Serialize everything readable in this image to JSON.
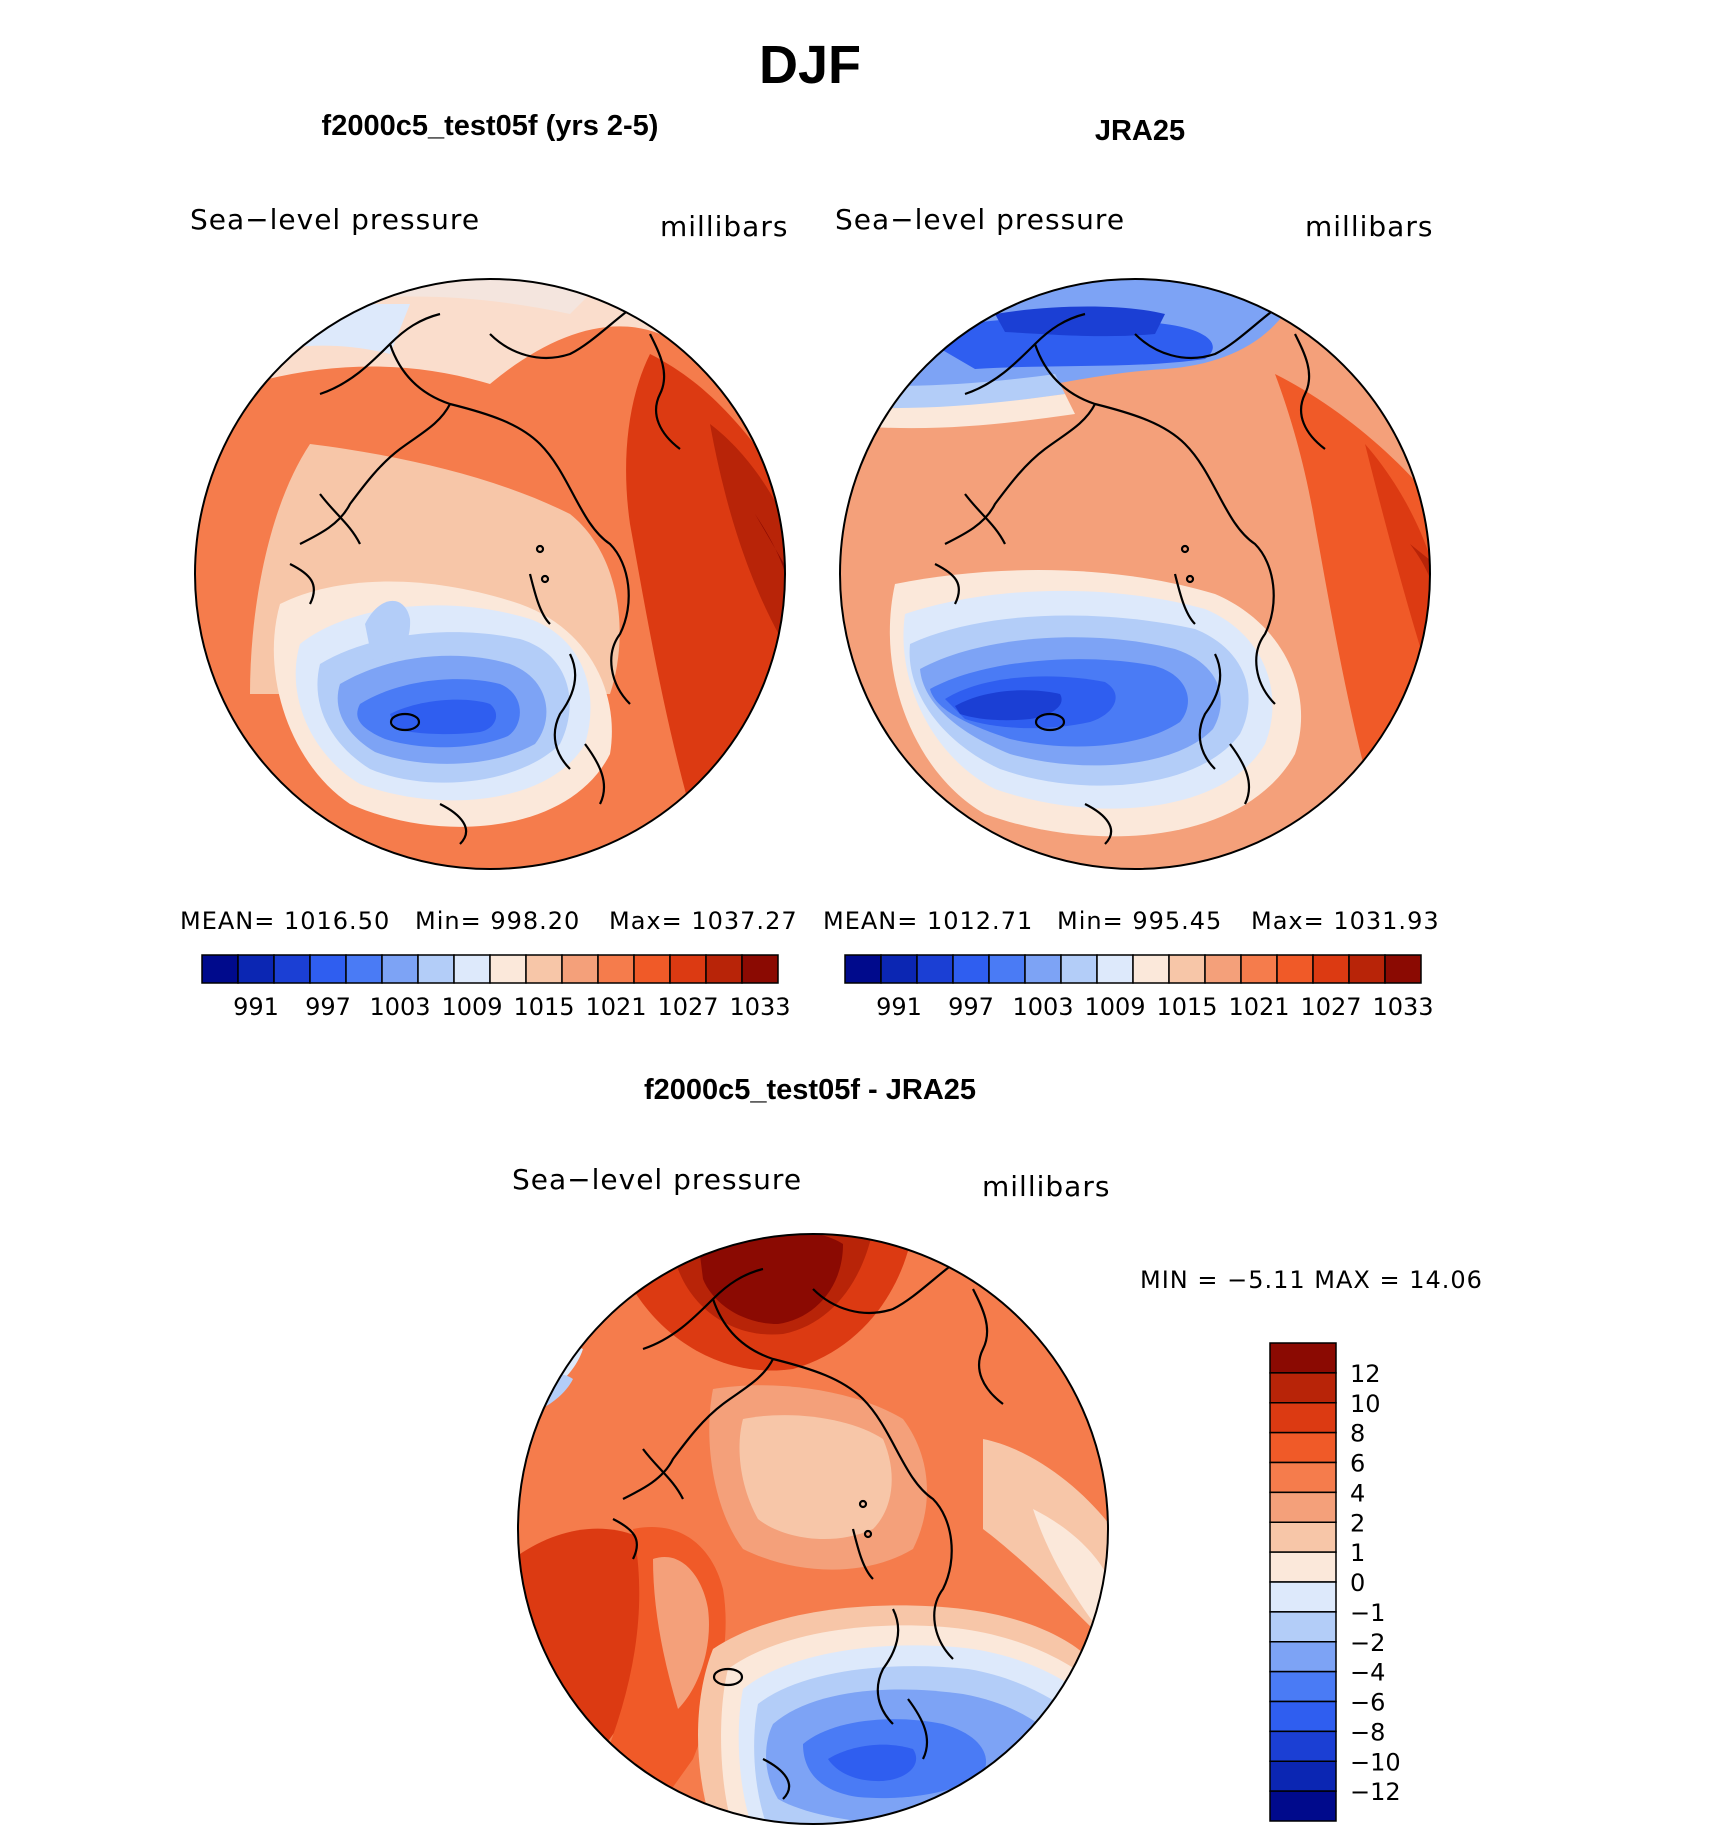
{
  "figure": {
    "title": "DJF"
  },
  "panels": [
    {
      "title": "f2000c5_test05f (yrs 2-5)",
      "left_string": "Sea−level pressure",
      "right_string": "millibars",
      "stats": {
        "mean": "MEAN=  1016.50",
        "min": "Min=  998.20",
        "max": "Max=  1037.27"
      },
      "colorbar": {
        "labels": [
          "991",
          "997",
          "1003",
          "1009",
          "1015",
          "1021",
          "1027",
          "1033"
        ],
        "colors": [
          "#000a8c",
          "#0b26b3",
          "#1b3fd4",
          "#2f5ef0",
          "#4a7bf5",
          "#7da3f5",
          "#b3cdf8",
          "#dde9fb",
          "#fbe8da",
          "#f7c6a8",
          "#f4a07a",
          "#f57c4c",
          "#f05a28",
          "#dc3a12",
          "#b82408",
          "#8b0a02"
        ]
      }
    },
    {
      "title": "JRA25",
      "left_string": "Sea−level pressure",
      "right_string": "millibars",
      "stats": {
        "mean": "MEAN=  1012.71",
        "min": "Min=  995.45",
        "max": "Max=  1031.93"
      },
      "colorbar": {
        "labels": [
          "991",
          "997",
          "1003",
          "1009",
          "1015",
          "1021",
          "1027",
          "1033"
        ],
        "colors": [
          "#000a8c",
          "#0b26b3",
          "#1b3fd4",
          "#2f5ef0",
          "#4a7bf5",
          "#7da3f5",
          "#b3cdf8",
          "#dde9fb",
          "#fbe8da",
          "#f7c6a8",
          "#f4a07a",
          "#f57c4c",
          "#f05a28",
          "#dc3a12",
          "#b82408",
          "#8b0a02"
        ]
      }
    },
    {
      "title": "f2000c5_test05f - JRA25",
      "left_string": "Sea−level pressure",
      "right_string": "millibars",
      "stats": {
        "minmax": "MIN =   −5.11  MAX =    14.06"
      },
      "colorbar": {
        "labels": [
          "12",
          "10",
          "8",
          "6",
          "4",
          "2",
          "1",
          "0",
          "−1",
          "−2",
          "−4",
          "−6",
          "−8",
          "−10",
          "−12"
        ],
        "colors": [
          "#8b0a02",
          "#b82408",
          "#dc3a12",
          "#f05a28",
          "#f57c4c",
          "#f4a07a",
          "#f7c6a8",
          "#fbe8da",
          "#dde9fb",
          "#b3cdf8",
          "#7da3f5",
          "#4a7bf5",
          "#2f5ef0",
          "#1b3fd4",
          "#0b26b3",
          "#000a8c"
        ]
      }
    }
  ]
}
